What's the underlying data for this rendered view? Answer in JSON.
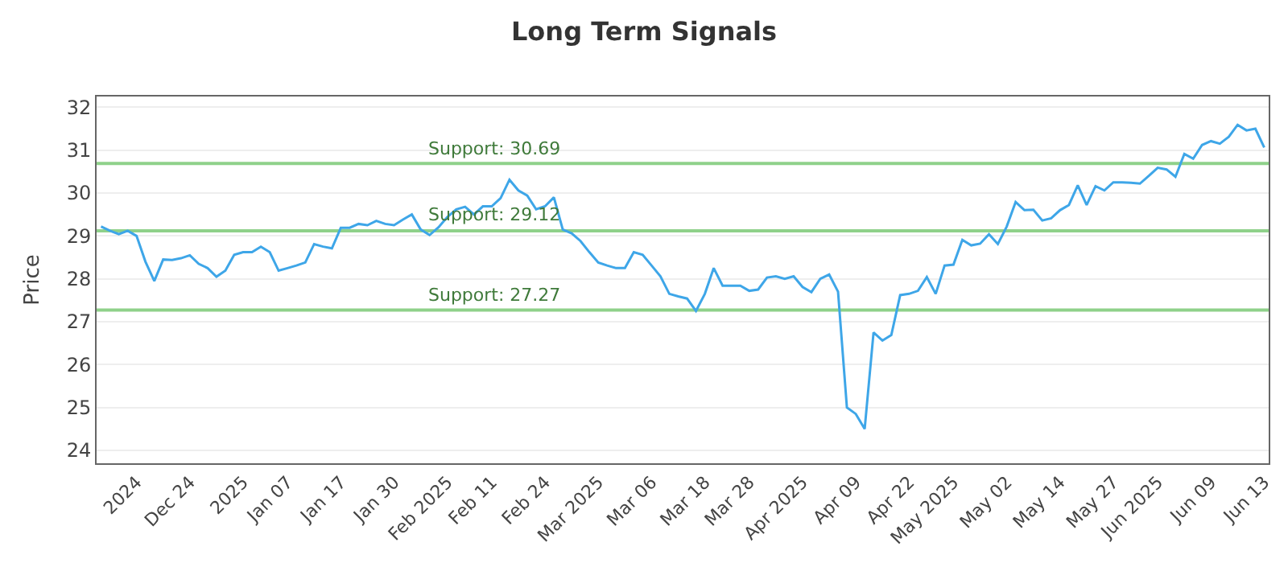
{
  "chart_data": {
    "type": "line",
    "title": "Long Term Signals",
    "ylabel": "Price",
    "categories": [
      null,
      null,
      null,
      null,
      "2024",
      null,
      null,
      null,
      null,
      null,
      "Dec 24",
      null,
      null,
      null,
      null,
      null,
      "2025",
      null,
      null,
      null,
      null,
      "Jan 07",
      null,
      null,
      null,
      null,
      null,
      "Jan 17",
      null,
      null,
      null,
      null,
      null,
      "Jan 30",
      null,
      null,
      null,
      null,
      null,
      "Feb 2025",
      null,
      null,
      null,
      null,
      "Feb 11",
      null,
      null,
      null,
      null,
      null,
      "Feb 24",
      null,
      null,
      null,
      null,
      null,
      "Mar 2025",
      null,
      null,
      null,
      null,
      null,
      "Mar 06",
      null,
      null,
      null,
      null,
      null,
      "Mar 18",
      null,
      null,
      null,
      null,
      "Mar 28",
      null,
      null,
      null,
      null,
      null,
      "Apr 2025",
      null,
      null,
      null,
      null,
      null,
      "Apr 09",
      null,
      null,
      null,
      null,
      null,
      "Apr 22",
      null,
      null,
      null,
      null,
      "May 2025",
      null,
      null,
      null,
      null,
      null,
      "May 02",
      null,
      null,
      null,
      null,
      null,
      "May 14",
      null,
      null,
      null,
      null,
      null,
      "May 27",
      null,
      null,
      null,
      null,
      "Jun 2025",
      null,
      null,
      null,
      null,
      null,
      "Jun 09",
      null,
      null,
      null,
      null,
      null,
      "Jun 13"
    ],
    "series": [
      {
        "color": "#3ea6e8",
        "values": [
          29.22,
          29.12,
          29.04,
          29.12,
          29.0,
          28.4,
          27.95,
          28.45,
          28.44,
          28.48,
          28.55,
          28.35,
          28.25,
          28.05,
          28.19,
          28.56,
          28.62,
          28.62,
          28.75,
          28.62,
          28.19,
          28.25,
          28.31,
          28.38,
          28.81,
          28.75,
          28.71,
          29.19,
          29.19,
          29.28,
          29.25,
          29.35,
          29.28,
          29.25,
          29.38,
          29.5,
          29.15,
          29.02,
          29.2,
          29.44,
          29.62,
          29.68,
          29.5,
          29.69,
          29.69,
          29.88,
          30.31,
          30.06,
          29.94,
          29.62,
          29.69,
          29.9,
          29.15,
          29.06,
          28.88,
          28.62,
          28.38,
          28.31,
          28.25,
          28.25,
          28.62,
          28.56,
          28.31,
          28.06,
          27.65,
          27.59,
          27.54,
          27.25,
          27.65,
          28.25,
          27.84,
          27.84,
          27.84,
          27.72,
          27.75,
          28.03,
          28.06,
          28.0,
          28.06,
          27.81,
          27.69,
          28.0,
          28.1,
          27.7,
          25.0,
          24.85,
          24.5,
          26.75,
          26.56,
          26.69,
          27.62,
          27.65,
          27.72,
          28.04,
          27.65,
          28.31,
          28.33,
          28.91,
          28.78,
          28.82,
          29.04,
          28.81,
          29.22,
          29.79,
          29.6,
          29.61,
          29.36,
          29.41,
          29.6,
          29.72,
          30.18,
          29.72,
          30.16,
          30.06,
          30.25,
          30.25,
          30.24,
          30.22,
          30.4,
          30.59,
          30.55,
          30.38,
          30.91,
          30.8,
          31.12,
          31.21,
          31.15,
          31.31,
          31.59,
          31.46,
          31.5,
          31.06
        ]
      }
    ],
    "ylim": [
      23.7,
      32.25
    ],
    "yticks": [
      24,
      25,
      26,
      27,
      28,
      29,
      30,
      31,
      32
    ],
    "ref_lines": [
      {
        "axis": "y",
        "value": 30.69,
        "label": "Support: 30.69",
        "color": "#8fd18a"
      },
      {
        "axis": "y",
        "value": 29.12,
        "label": "Support: 29.12",
        "color": "#8fd18a"
      },
      {
        "axis": "y",
        "value": 27.27,
        "label": "Support: 27.27",
        "color": "#8fd18a"
      }
    ],
    "grid": "y",
    "marker": "none",
    "line_style": "solid"
  }
}
